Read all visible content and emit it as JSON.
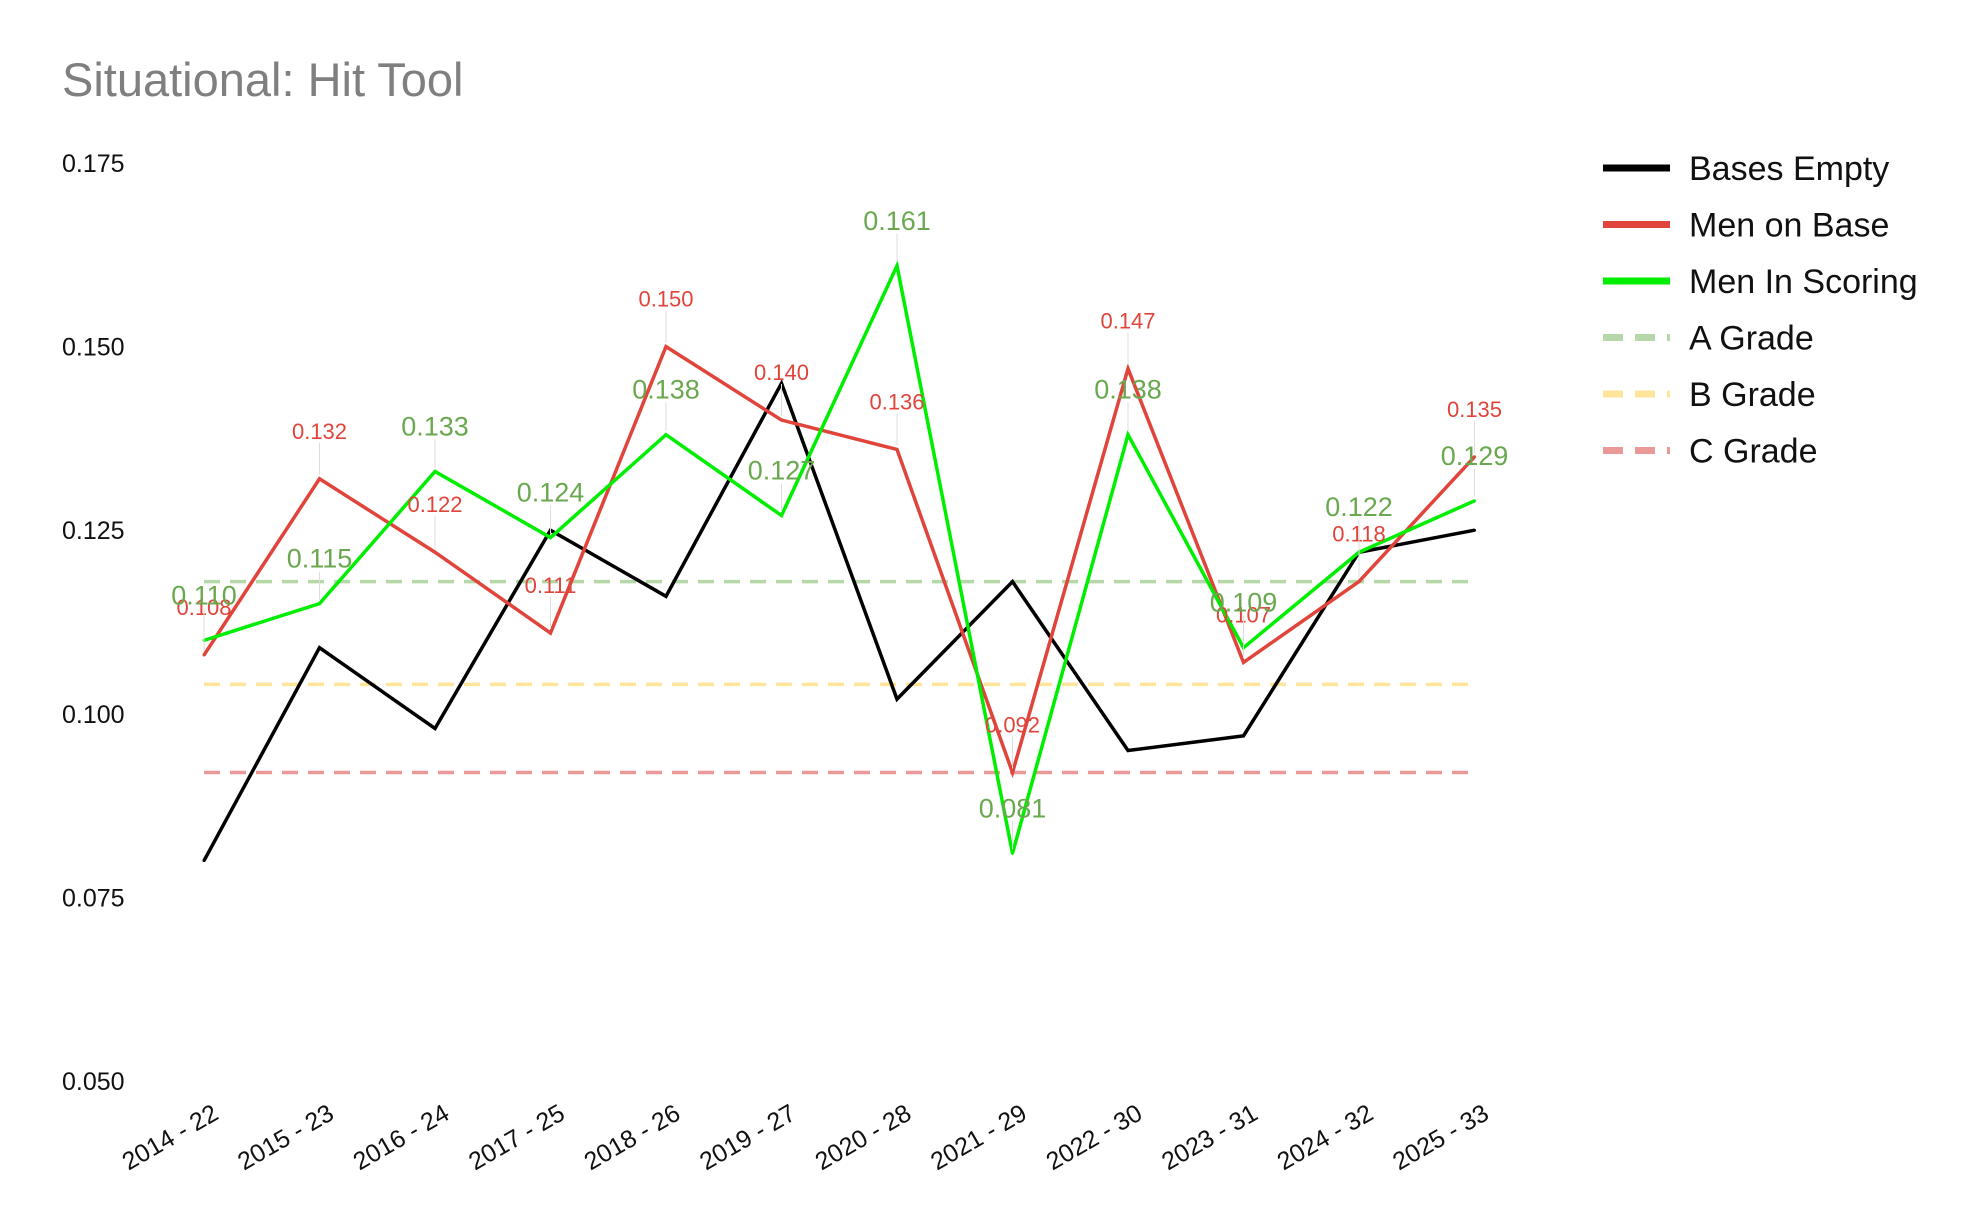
{
  "chart_data": {
    "type": "line",
    "title": "Situational: Hit Tool",
    "xlabel": "",
    "ylabel": "",
    "categories": [
      "2014 - 22",
      "2015 - 23",
      "2016 - 24",
      "2017 - 25",
      "2018 - 26",
      "2019 - 27",
      "2020 - 28",
      "2021 - 29",
      "2022 - 30",
      "2023 - 31",
      "2024 - 32",
      "2025 - 33"
    ],
    "y_ticks": [
      "0.050",
      "0.075",
      "0.100",
      "0.125",
      "0.150",
      "0.175"
    ],
    "ylim": [
      0.05,
      0.175
    ],
    "grid": false,
    "legend_position": "top-right",
    "series": [
      {
        "name": "Bases Empty",
        "color": "#000000",
        "values": [
          0.08,
          0.109,
          0.098,
          0.125,
          0.116,
          0.145,
          0.102,
          0.118,
          0.095,
          0.097,
          0.122,
          0.125
        ],
        "labels": []
      },
      {
        "name": "Men on Base",
        "color": "#e0443a",
        "values": [
          0.108,
          0.132,
          0.122,
          0.111,
          0.15,
          0.14,
          0.136,
          0.092,
          0.147,
          0.107,
          0.118,
          0.135
        ],
        "labels": [
          "0.108",
          "0.132",
          "0.122",
          "0.111",
          "0.150",
          "0.140",
          "0.136",
          "0.092",
          "0.147",
          "0.107",
          "0.118",
          "0.135"
        ]
      },
      {
        "name": "Men In Scoring",
        "color": "#00ee00",
        "label_color": "#6aa84f",
        "values": [
          0.11,
          0.115,
          0.133,
          0.124,
          0.138,
          0.127,
          0.161,
          0.081,
          0.138,
          0.109,
          0.122,
          0.129
        ],
        "labels": [
          "0.110",
          "0.115",
          "0.133",
          "0.124",
          "0.138",
          "0.127",
          "0.161",
          "0.081",
          "0.138",
          "0.109",
          "0.122",
          "0.129"
        ]
      }
    ],
    "reference_lines": [
      {
        "name": "A Grade",
        "color": "#b6d7a8",
        "value": 0.118
      },
      {
        "name": "B Grade",
        "color": "#ffe599",
        "value": 0.104
      },
      {
        "name": "C Grade",
        "color": "#ea9999",
        "value": 0.092
      }
    ]
  }
}
